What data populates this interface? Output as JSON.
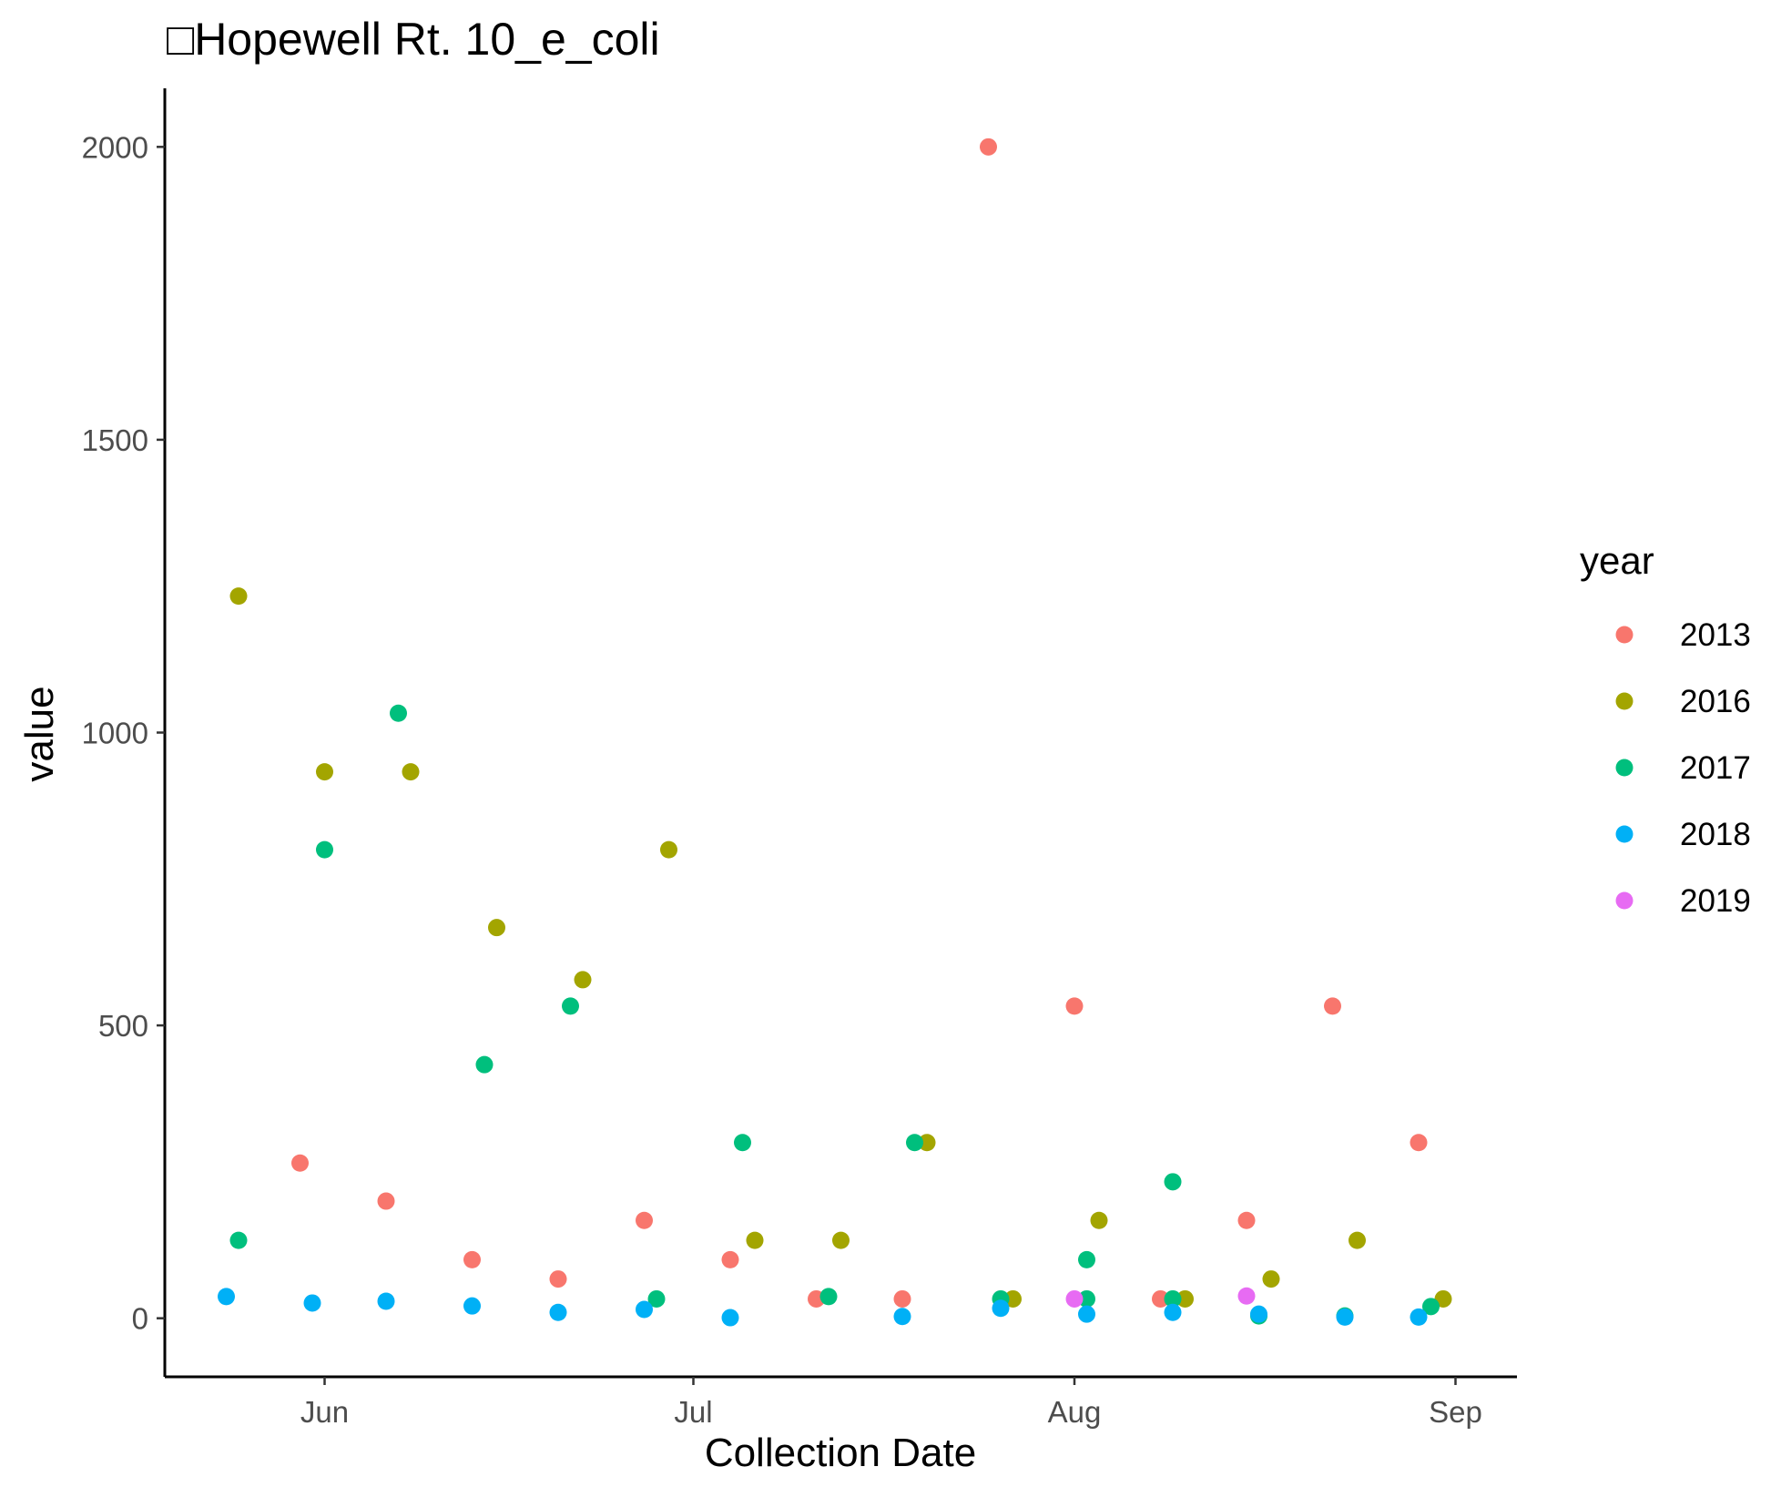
{
  "chart_data": {
    "type": "scatter",
    "title": "□Hopewell Rt. 10_e_coli",
    "xlabel": "Collection Date",
    "ylabel": "value",
    "x_axis_type": "date",
    "xlim": [
      "2018-05-19",
      "2018-09-06"
    ],
    "ylim": [
      -100,
      2100
    ],
    "x_ticks": [
      {
        "date": "2018-06-01",
        "label": "Jun"
      },
      {
        "date": "2018-07-01",
        "label": "Jul"
      },
      {
        "date": "2018-08-01",
        "label": "Aug"
      },
      {
        "date": "2018-09-01",
        "label": "Sep"
      }
    ],
    "y_ticks": [
      0,
      500,
      1000,
      1500,
      2000
    ],
    "grid": false,
    "legend": {
      "title": "year",
      "position": "right"
    },
    "series": [
      {
        "name": "2013",
        "color": "#F8766D",
        "points": [
          {
            "x": "2018-05-30",
            "y": 265
          },
          {
            "x": "2018-06-06",
            "y": 200
          },
          {
            "x": "2018-06-13",
            "y": 100
          },
          {
            "x": "2018-06-20",
            "y": 67
          },
          {
            "x": "2018-06-27",
            "y": 167
          },
          {
            "x": "2018-07-04",
            "y": 100
          },
          {
            "x": "2018-07-11",
            "y": 33
          },
          {
            "x": "2018-07-18",
            "y": 33
          },
          {
            "x": "2018-07-25",
            "y": 2000
          },
          {
            "x": "2018-08-01",
            "y": 533
          },
          {
            "x": "2018-08-08",
            "y": 33
          },
          {
            "x": "2018-08-15",
            "y": 167
          },
          {
            "x": "2018-08-22",
            "y": 533
          },
          {
            "x": "2018-08-29",
            "y": 300
          }
        ]
      },
      {
        "name": "2016",
        "color": "#A3A500",
        "points": [
          {
            "x": "2018-05-25",
            "y": 1233
          },
          {
            "x": "2018-06-01",
            "y": 933
          },
          {
            "x": "2018-06-08",
            "y": 933
          },
          {
            "x": "2018-06-15",
            "y": 667
          },
          {
            "x": "2018-06-22",
            "y": 578
          },
          {
            "x": "2018-06-29",
            "y": 800
          },
          {
            "x": "2018-07-06",
            "y": 133
          },
          {
            "x": "2018-07-13",
            "y": 133
          },
          {
            "x": "2018-07-20",
            "y": 300
          },
          {
            "x": "2018-07-27",
            "y": 33
          },
          {
            "x": "2018-08-03",
            "y": 167
          },
          {
            "x": "2018-08-10",
            "y": 33
          },
          {
            "x": "2018-08-17",
            "y": 67
          },
          {
            "x": "2018-08-24",
            "y": 133
          },
          {
            "x": "2018-08-31",
            "y": 33
          }
        ]
      },
      {
        "name": "2017",
        "color": "#00BF7D",
        "points": [
          {
            "x": "2018-05-25",
            "y": 133
          },
          {
            "x": "2018-06-01",
            "y": 800
          },
          {
            "x": "2018-06-07",
            "y": 1033
          },
          {
            "x": "2018-06-14",
            "y": 433
          },
          {
            "x": "2018-06-21",
            "y": 533
          },
          {
            "x": "2018-06-28",
            "y": 33
          },
          {
            "x": "2018-07-05",
            "y": 300
          },
          {
            "x": "2018-07-12",
            "y": 37
          },
          {
            "x": "2018-07-19",
            "y": 300
          },
          {
            "x": "2018-07-26",
            "y": 33
          },
          {
            "x": "2018-08-02",
            "y": 100
          },
          {
            "x": "2018-08-02",
            "y": 33
          },
          {
            "x": "2018-08-09",
            "y": 233
          },
          {
            "x": "2018-08-09",
            "y": 33
          },
          {
            "x": "2018-08-16",
            "y": 4
          },
          {
            "x": "2018-08-23",
            "y": 4
          },
          {
            "x": "2018-08-30",
            "y": 20
          }
        ]
      },
      {
        "name": "2018",
        "color": "#00B0F6",
        "points": [
          {
            "x": "2018-05-24",
            "y": 37
          },
          {
            "x": "2018-05-31",
            "y": 26
          },
          {
            "x": "2018-06-06",
            "y": 29
          },
          {
            "x": "2018-06-13",
            "y": 21
          },
          {
            "x": "2018-06-20",
            "y": 10
          },
          {
            "x": "2018-06-27",
            "y": 15
          },
          {
            "x": "2018-07-04",
            "y": 1
          },
          {
            "x": "2018-07-18",
            "y": 3
          },
          {
            "x": "2018-07-26",
            "y": 17
          },
          {
            "x": "2018-08-02",
            "y": 7
          },
          {
            "x": "2018-08-09",
            "y": 10
          },
          {
            "x": "2018-08-16",
            "y": 7
          },
          {
            "x": "2018-08-23",
            "y": 2
          },
          {
            "x": "2018-08-29",
            "y": 2
          }
        ]
      },
      {
        "name": "2019",
        "color": "#E76BF3",
        "points": [
          {
            "x": "2018-08-01",
            "y": 33
          },
          {
            "x": "2018-08-15",
            "y": 38
          }
        ]
      }
    ]
  }
}
